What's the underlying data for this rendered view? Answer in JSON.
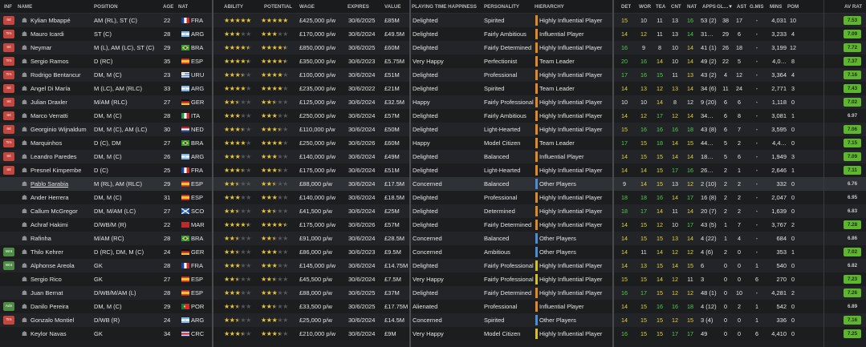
{
  "colors": {
    "background": "#1e1f21",
    "rating_green": "#5db62d",
    "attr_green": "#4ed14a",
    "attr_yellow": "#e3d33c",
    "badge_red": "#c4473f",
    "badge_green": "#4e8c45",
    "hier_orange": "#e38a1c",
    "hier_yellow": "#d9c31a",
    "hier_blue": "#4a8fd6",
    "star_gold": "#e9c43a"
  },
  "headers": [
    "INF",
    "NAME",
    "POSITION",
    "AGE",
    "NAT",
    "ABILITY",
    "POTENTIAL",
    "WAGE",
    "EXPIRES",
    "VALUE",
    "PLAYING TIME HAPPINESS",
    "PERSONALITY",
    "HIERARCHY",
    "DET",
    "WOR",
    "TEA",
    "CNT",
    "NAT",
    "APPS",
    "GL…",
    "▼",
    "AST",
    "G.MIS",
    "MINS",
    "POM",
    "AV RAT"
  ],
  "players": [
    {
      "inf": "Int",
      "inf_color": "red",
      "name": "Kylian Mbappé",
      "pos": "AM (RL), ST (C)",
      "age": "22",
      "nat": "FRA",
      "flag": "fra",
      "ability": "★★★★★",
      "ability_on": 5,
      "potential_on": 5,
      "wage": "£425,000 p/w",
      "expires": "30/6/2025",
      "value": "£85M",
      "happiness": "Delighted",
      "personality": "Spirited",
      "hierarchy": "Highly Influential Player",
      "hier": "orange",
      "det": "15",
      "wor": "10",
      "tea": "11",
      "cnt": "13",
      "natv": "16",
      "apps": "53 (2)",
      "gl": "38",
      "ast": "17",
      "gmis": "-",
      "mins": "4,031",
      "pom": "10",
      "rat": "7.53",
      "rat_g": true,
      "dc": [
        "y",
        "w",
        "w",
        "w",
        "g",
        "g"
      ]
    },
    {
      "inf": "Trn",
      "inf_color": "red",
      "name": "Mauro Icardi",
      "pos": "ST (C)",
      "age": "28",
      "nat": "ARG",
      "flag": "arg",
      "ability_on": 3,
      "potential_on": 3,
      "wage": "£170,000 p/w",
      "expires": "30/6/2024",
      "value": "£49.5M",
      "happiness": "Delighted",
      "personality": "Fairly Ambitious",
      "hierarchy": "Influential Player",
      "hier": "orange",
      "det": "14",
      "wor": "12",
      "tea": "11",
      "cnt": "13",
      "natv": "14",
      "apps": "31…",
      "gl": "29",
      "ast": "6",
      "gmis": "-",
      "mins": "3,233",
      "pom": "4",
      "rat": "7.09",
      "rat_g": true,
      "dc": [
        "y",
        "y",
        "w",
        "w",
        "g",
        "g"
      ]
    },
    {
      "inf": "Int",
      "inf_color": "red",
      "name": "Neymar",
      "pos": "M (L), AM (LC), ST (C)",
      "age": "29",
      "nat": "BRA",
      "flag": "bra",
      "ability_on": 4.5,
      "potential_on": 4.5,
      "wage": "£850,000 p/w",
      "expires": "30/6/2025",
      "value": "£60M",
      "happiness": "Delighted",
      "personality": "Fairly Determined",
      "hierarchy": "Highly Influential Player",
      "hier": "orange",
      "det": "16",
      "wor": "9",
      "tea": "8",
      "cnt": "10",
      "natv": "14",
      "apps": "41 (1)",
      "gl": "26",
      "ast": "18",
      "gmis": "-",
      "mins": "3,199",
      "pom": "12",
      "rat": "7.72",
      "rat_g": true,
      "dc": [
        "g",
        "w",
        "w",
        "w",
        "y",
        "g"
      ]
    },
    {
      "inf": "Trn",
      "inf_color": "red",
      "name": "Sergio Ramos",
      "pos": "D (RC)",
      "age": "35",
      "nat": "ESP",
      "flag": "esp",
      "ability_on": 4.5,
      "potential_on": 4.5,
      "wage": "£350,000 p/w",
      "expires": "30/6/2023",
      "value": "£5.75M",
      "happiness": "Very Happy",
      "personality": "Perfectionist",
      "hierarchy": "Team Leader",
      "hier": "orange",
      "det": "20",
      "wor": "16",
      "tea": "14",
      "cnt": "10",
      "natv": "14",
      "apps": "49 (2)",
      "gl": "22",
      "ast": "5",
      "gmis": "-",
      "mins": "4,0…",
      "pom": "8",
      "rat": "7.37",
      "rat_g": true,
      "dc": [
        "g",
        "g",
        "y",
        "w",
        "y",
        "g"
      ]
    },
    {
      "inf": "Trn",
      "inf_color": "red",
      "name": "Rodrigo Bentancur",
      "pos": "DM, M (C)",
      "age": "23",
      "nat": "URU",
      "flag": "uru",
      "ability_on": 3.5,
      "potential_on": 4,
      "wage": "£100,000 p/w",
      "expires": "30/6/2024",
      "value": "£51M",
      "happiness": "Delighted",
      "personality": "Professional",
      "hierarchy": "Highly Influential Player",
      "hier": "orange",
      "det": "17",
      "wor": "16",
      "tea": "15",
      "cnt": "11",
      "natv": "13",
      "apps": "43 (2)",
      "gl": "4",
      "ast": "12",
      "gmis": "-",
      "mins": "3,364",
      "pom": "4",
      "rat": "7.16",
      "rat_g": true,
      "dc": [
        "g",
        "g",
        "g",
        "w",
        "y",
        "g"
      ]
    },
    {
      "inf": "Int",
      "inf_color": "red",
      "name": "Angel Di María",
      "pos": "M (LC), AM (RLC)",
      "age": "33",
      "nat": "ARG",
      "flag": "arg",
      "ability_on": 4,
      "potential_on": 4,
      "wage": "£235,000 p/w",
      "expires": "30/6/2022",
      "value": "£21M",
      "happiness": "Delighted",
      "personality": "Spirited",
      "hierarchy": "Team Leader",
      "hier": "orange",
      "det": "14",
      "wor": "13",
      "tea": "12",
      "cnt": "13",
      "natv": "14",
      "apps": "34 (6)",
      "gl": "11",
      "ast": "24",
      "gmis": "-",
      "mins": "2,771",
      "pom": "3",
      "rat": "7.43",
      "rat_g": true,
      "dc": [
        "y",
        "y",
        "y",
        "y",
        "y",
        "g"
      ]
    },
    {
      "inf": "Int",
      "inf_color": "red",
      "name": "Julian Draxler",
      "pos": "M/AM (RLC)",
      "age": "27",
      "nat": "GER",
      "flag": "ger",
      "ability_on": 2.5,
      "potential_on": 2.5,
      "wage": "£125,000 p/w",
      "expires": "30/6/2024",
      "value": "£32.5M",
      "happiness": "Happy",
      "personality": "Fairly Professional",
      "hierarchy": "Highly Influential Player",
      "hier": "orange",
      "det": "10",
      "wor": "10",
      "tea": "14",
      "cnt": "8",
      "natv": "12",
      "apps": "9 (20)",
      "gl": "6",
      "ast": "6",
      "gmis": "-",
      "mins": "1,118",
      "pom": "0",
      "rat": "7.02",
      "rat_g": true,
      "dc": [
        "w",
        "w",
        "y",
        "w",
        "w",
        "g"
      ]
    },
    {
      "inf": "Int",
      "inf_color": "red",
      "name": "Marco Verratti",
      "pos": "DM, M (C)",
      "age": "28",
      "nat": "ITA",
      "flag": "ita",
      "ability_on": 3,
      "potential_on": 3,
      "wage": "£250,000 p/w",
      "expires": "30/6/2024",
      "value": "£57M",
      "happiness": "Delighted",
      "personality": "Fairly Ambitious",
      "hierarchy": "Highly Influential Player",
      "hier": "orange",
      "det": "14",
      "wor": "12",
      "tea": "17",
      "cnt": "12",
      "natv": "14",
      "apps": "34…",
      "gl": "6",
      "ast": "8",
      "gmis": "-",
      "mins": "3,081",
      "pom": "1",
      "rat": "6.97",
      "rat_g": false,
      "dc": [
        "y",
        "y",
        "g",
        "y",
        "y",
        "g"
      ]
    },
    {
      "inf": "Int",
      "inf_color": "red",
      "name": "Georginio Wijnaldum",
      "pos": "DM, M (C), AM (LC)",
      "age": "30",
      "nat": "NED",
      "flag": "ned",
      "ability_on": 3.5,
      "potential_on": 3.5,
      "wage": "£110,000 p/w",
      "expires": "30/6/2024",
      "value": "£50M",
      "happiness": "Delighted",
      "personality": "Light-Hearted",
      "hierarchy": "Highly Influential Player",
      "hier": "orange",
      "det": "15",
      "wor": "16",
      "tea": "16",
      "cnt": "16",
      "natv": "18",
      "apps": "43 (8)",
      "gl": "6",
      "ast": "7",
      "gmis": "-",
      "mins": "3,595",
      "pom": "0",
      "rat": "7.06",
      "rat_g": true,
      "dc": [
        "y",
        "g",
        "g",
        "g",
        "g",
        "g"
      ]
    },
    {
      "inf": "Trn",
      "inf_color": "red",
      "name": "Marquinhos",
      "pos": "D (C), DM",
      "age": "27",
      "nat": "BRA",
      "flag": "bra",
      "ability_on": 4,
      "potential_on": 4,
      "wage": "£250,000 p/w",
      "expires": "30/6/2026",
      "value": "£60M",
      "happiness": "Happy",
      "personality": "Model Citizen",
      "hierarchy": "Team Leader",
      "hier": "orange",
      "det": "17",
      "wor": "15",
      "tea": "18",
      "cnt": "14",
      "natv": "15",
      "apps": "44…",
      "gl": "5",
      "ast": "2",
      "gmis": "-",
      "mins": "4,4…",
      "pom": "0",
      "rat": "7.15",
      "rat_g": true,
      "dc": [
        "g",
        "y",
        "g",
        "y",
        "y",
        "g"
      ]
    },
    {
      "inf": "Int",
      "inf_color": "red",
      "name": "Leandro Paredes",
      "pos": "DM, M (C)",
      "age": "26",
      "nat": "ARG",
      "flag": "arg",
      "ability_on": 3,
      "potential_on": 3,
      "wage": "£140,000 p/w",
      "expires": "30/6/2024",
      "value": "£49M",
      "happiness": "Delighted",
      "personality": "Balanced",
      "hierarchy": "Influential Player",
      "hier": "orange",
      "det": "14",
      "wor": "15",
      "tea": "15",
      "cnt": "14",
      "natv": "14",
      "apps": "18…",
      "gl": "5",
      "ast": "6",
      "gmis": "-",
      "mins": "1,949",
      "pom": "3",
      "rat": "7.09",
      "rat_g": true,
      "dc": [
        "y",
        "y",
        "y",
        "y",
        "y",
        "g"
      ]
    },
    {
      "inf": "Int",
      "inf_color": "red",
      "name": "Presnel Kimpembe",
      "pos": "D (C)",
      "age": "25",
      "nat": "FRA",
      "flag": "fra",
      "ability_on": 3.5,
      "potential_on": 3.5,
      "wage": "£175,000 p/w",
      "expires": "30/6/2024",
      "value": "£51M",
      "happiness": "Delighted",
      "personality": "Light-Hearted",
      "hierarchy": "Highly Influential Player",
      "hier": "orange",
      "det": "14",
      "wor": "14",
      "tea": "15",
      "cnt": "17",
      "natv": "16",
      "apps": "26…",
      "gl": "2",
      "ast": "1",
      "gmis": "-",
      "mins": "2,646",
      "pom": "1",
      "rat": "7.11",
      "rat_g": true,
      "dc": [
        "y",
        "y",
        "y",
        "g",
        "g",
        "g"
      ]
    },
    {
      "inf": "",
      "inf_color": "none",
      "name": "Pablo Sarabia",
      "pos": "M (RL), AM (RLC)",
      "age": "29",
      "nat": "ESP",
      "flag": "esp",
      "ability_on": 2.5,
      "potential_on": 2.5,
      "wage": "£88,000 p/w",
      "expires": "30/6/2024",
      "value": "£17.5M",
      "happiness": "Concerned",
      "personality": "Balanced",
      "hierarchy": "Other Players",
      "hier": "blue",
      "det": "9",
      "wor": "14",
      "tea": "15",
      "cnt": "13",
      "natv": "12",
      "apps": "2 (10)",
      "gl": "2",
      "ast": "2",
      "gmis": "-",
      "mins": "332",
      "pom": "0",
      "rat": "6.76",
      "rat_g": false,
      "link": true,
      "dc": [
        "w",
        "y",
        "y",
        "w",
        "y",
        "g"
      ]
    },
    {
      "inf": "",
      "inf_color": "none",
      "name": "Ander Herrera",
      "pos": "DM, M (C)",
      "age": "31",
      "nat": "ESP",
      "flag": "esp",
      "ability_on": 3,
      "potential_on": 3,
      "wage": "£140,000 p/w",
      "expires": "30/6/2024",
      "value": "£18.5M",
      "happiness": "Delighted",
      "personality": "Professional",
      "hierarchy": "Highly Influential Player",
      "hier": "orange",
      "det": "18",
      "wor": "18",
      "tea": "16",
      "cnt": "14",
      "natv": "17",
      "apps": "16 (8)",
      "gl": "2",
      "ast": "2",
      "gmis": "-",
      "mins": "2,047",
      "pom": "0",
      "rat": "6.95",
      "rat_g": false,
      "dc": [
        "g",
        "g",
        "g",
        "y",
        "g",
        "g"
      ]
    },
    {
      "inf": "",
      "inf_color": "none",
      "name": "Callum McGregor",
      "pos": "DM, M/AM (LC)",
      "age": "27",
      "nat": "SCO",
      "flag": "sco",
      "ability_on": 2.5,
      "potential_on": 2.5,
      "wage": "£41,500 p/w",
      "expires": "30/6/2024",
      "value": "£25M",
      "happiness": "Delighted",
      "personality": "Determined",
      "hierarchy": "Highly Influential Player",
      "hier": "orange",
      "det": "18",
      "wor": "17",
      "tea": "14",
      "cnt": "11",
      "natv": "14",
      "apps": "20 (7)",
      "gl": "2",
      "ast": "2",
      "gmis": "-",
      "mins": "1,639",
      "pom": "0",
      "rat": "6.83",
      "rat_g": false,
      "dc": [
        "g",
        "g",
        "y",
        "w",
        "y",
        "g"
      ]
    },
    {
      "inf": "",
      "inf_color": "none",
      "name": "Achraf Hakimi",
      "pos": "D/WB/M (R)",
      "age": "22",
      "nat": "MAR",
      "flag": "mar",
      "ability_on": 4.5,
      "potential_on": 4.5,
      "wage": "£175,000 p/w",
      "expires": "30/6/2026",
      "value": "£57M",
      "happiness": "Delighted",
      "personality": "Fairly Determined",
      "hierarchy": "Highly Influential Player",
      "hier": "orange",
      "det": "14",
      "wor": "15",
      "tea": "12",
      "cnt": "10",
      "natv": "17",
      "apps": "43 (5)",
      "gl": "1",
      "ast": "7",
      "gmis": "-",
      "mins": "3,767",
      "pom": "2",
      "rat": "7.28",
      "rat_g": true,
      "dc": [
        "y",
        "y",
        "y",
        "w",
        "g",
        "g"
      ]
    },
    {
      "inf": "",
      "inf_color": "none",
      "name": "Rafinha",
      "pos": "M/AM (RC)",
      "age": "28",
      "nat": "BRA",
      "flag": "bra",
      "ability_on": 2.5,
      "potential_on": 2.5,
      "wage": "£91,000 p/w",
      "expires": "30/6/2024",
      "value": "£28.5M",
      "happiness": "Concerned",
      "personality": "Balanced",
      "hierarchy": "Other Players",
      "hier": "blue",
      "det": "14",
      "wor": "15",
      "tea": "15",
      "cnt": "13",
      "natv": "14",
      "apps": "4 (22)",
      "gl": "1",
      "ast": "4",
      "gmis": "-",
      "mins": "684",
      "pom": "0",
      "rat": "6.86",
      "rat_g": false,
      "dc": [
        "y",
        "y",
        "y",
        "y",
        "y",
        "g"
      ]
    },
    {
      "inf": "Wnt",
      "inf_color": "green",
      "name": "Thilo Kehrer",
      "pos": "D (RC), DM, M (C)",
      "age": "24",
      "nat": "GER",
      "flag": "ger",
      "ability_on": 2.5,
      "potential_on": 3,
      "wage": "£86,000 p/w",
      "expires": "30/6/2023",
      "value": "£9.5M",
      "happiness": "Concerned",
      "personality": "Ambitious",
      "hierarchy": "Other Players",
      "hier": "blue",
      "det": "14",
      "wor": "11",
      "tea": "14",
      "cnt": "12",
      "natv": "12",
      "apps": "4 (6)",
      "gl": "2",
      "ast": "0",
      "gmis": "-",
      "mins": "353",
      "pom": "1",
      "rat": "7.02",
      "rat_g": true,
      "dc": [
        "y",
        "w",
        "y",
        "y",
        "y",
        "g"
      ]
    },
    {
      "inf": "Wnt",
      "inf_color": "green",
      "name": "Alphonse Areola",
      "pos": "GK",
      "age": "28",
      "nat": "FRA",
      "flag": "fra",
      "ability_on": 3,
      "potential_on": 3,
      "wage": "£145,000 p/w",
      "expires": "30/6/2024",
      "value": "£14.75M",
      "happiness": "Delighted",
      "personality": "Fairly Professional",
      "hierarchy": "Highly Influential Player",
      "hier": "yellow",
      "det": "14",
      "wor": "13",
      "tea": "15",
      "cnt": "14",
      "natv": "15",
      "apps": "6",
      "gl": "0",
      "ast": "0",
      "gmis": "1",
      "mins": "540",
      "pom": "0",
      "rat": "6.82",
      "rat_g": false,
      "dc": [
        "y",
        "y",
        "y",
        "y",
        "y",
        "g"
      ]
    },
    {
      "inf": "",
      "inf_color": "none",
      "name": "Sergio Rico",
      "pos": "GK",
      "age": "27",
      "nat": "ESP",
      "flag": "esp",
      "ability_on": 2.5,
      "potential_on": 2.5,
      "wage": "£45,500 p/w",
      "expires": "30/6/2024",
      "value": "£7.5M",
      "happiness": "Very Happy",
      "personality": "Fairly Professional",
      "hierarchy": "Highly Influential Player",
      "hier": "yellow",
      "det": "15",
      "wor": "15",
      "tea": "14",
      "cnt": "12",
      "natv": "11",
      "apps": "3",
      "gl": "0",
      "ast": "0",
      "gmis": "6",
      "mins": "270",
      "pom": "0",
      "rat": "7.23",
      "rat_g": true,
      "dc": [
        "y",
        "y",
        "y",
        "y",
        "w",
        "g"
      ]
    },
    {
      "inf": "",
      "inf_color": "none",
      "name": "Juan Bernat",
      "pos": "D/WB/M/AM (L)",
      "age": "28",
      "nat": "ESP",
      "flag": "esp",
      "ability_on": 3,
      "potential_on": 3,
      "wage": "£88,000 p/w",
      "expires": "30/6/2025",
      "value": "£37M",
      "happiness": "Delighted",
      "personality": "Fairly Determined",
      "hierarchy": "Highly Influential Player",
      "hier": "orange",
      "det": "16",
      "wor": "17",
      "tea": "15",
      "cnt": "12",
      "natv": "12",
      "apps": "48 (1)",
      "gl": "0",
      "ast": "10",
      "gmis": "-",
      "mins": "4,281",
      "pom": "2",
      "rat": "7.26",
      "rat_g": true,
      "dc": [
        "g",
        "g",
        "y",
        "y",
        "y",
        "g"
      ]
    },
    {
      "inf": "Adv",
      "inf_color": "green",
      "name": "Danilo Pereira",
      "pos": "DM, M (C)",
      "age": "29",
      "nat": "POR",
      "flag": "por",
      "ability_on": 2.5,
      "potential_on": 2.5,
      "wage": "£33,500 p/w",
      "expires": "30/6/2025",
      "value": "£17.75M",
      "happiness": "Alienated",
      "personality": "Professional",
      "hierarchy": "Influential Player",
      "hier": "orange",
      "det": "14",
      "wor": "15",
      "tea": "16",
      "cnt": "16",
      "natv": "18",
      "apps": "4 (12)",
      "gl": "0",
      "ast": "2",
      "gmis": "1",
      "mins": "542",
      "pom": "0",
      "rat": "6.89",
      "rat_g": false,
      "dc": [
        "y",
        "y",
        "g",
        "g",
        "g",
        "g"
      ]
    },
    {
      "inf": "Trn",
      "inf_color": "red",
      "name": "Gonzalo Montiel",
      "pos": "D/WB (R)",
      "age": "24",
      "nat": "ARG",
      "flag": "arg",
      "ability_on": 2.5,
      "potential_on": 3,
      "wage": "£25,000 p/w",
      "expires": "30/6/2024",
      "value": "£14.5M",
      "happiness": "Concerned",
      "personality": "Spirited",
      "hierarchy": "Other Players",
      "hier": "blue",
      "det": "14",
      "wor": "15",
      "tea": "15",
      "cnt": "12",
      "natv": "15",
      "apps": "3 (4)",
      "gl": "0",
      "ast": "0",
      "gmis": "1",
      "mins": "336",
      "pom": "0",
      "rat": "7.16",
      "rat_g": true,
      "dc": [
        "y",
        "y",
        "y",
        "y",
        "y",
        "g"
      ]
    },
    {
      "inf": "",
      "inf_color": "none",
      "name": "Keylor Navas",
      "pos": "GK",
      "age": "34",
      "nat": "CRC",
      "flag": "crc",
      "ability_on": 3.5,
      "potential_on": 3.5,
      "wage": "£210,000 p/w",
      "expires": "30/6/2024",
      "value": "£9M",
      "happiness": "Very Happy",
      "personality": "Model Citizen",
      "hierarchy": "Highly Influential Player",
      "hier": "yellow",
      "det": "16",
      "wor": "15",
      "tea": "15",
      "cnt": "17",
      "natv": "17",
      "apps": "49",
      "gl": "0",
      "ast": "0",
      "gmis": "6",
      "mins": "4,410",
      "pom": "0",
      "rat": "7.25",
      "rat_g": true,
      "dc": [
        "g",
        "y",
        "y",
        "g",
        "g",
        "g"
      ]
    }
  ]
}
